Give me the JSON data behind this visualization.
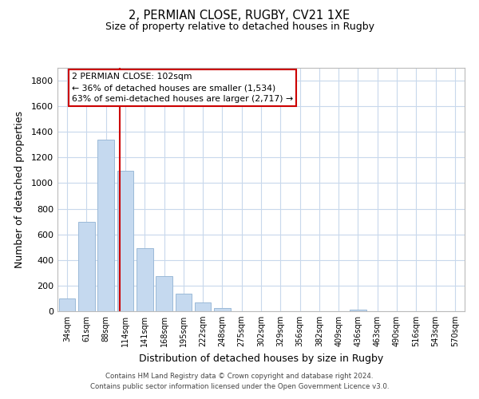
{
  "title": "2, PERMIAN CLOSE, RUGBY, CV21 1XE",
  "subtitle": "Size of property relative to detached houses in Rugby",
  "xlabel": "Distribution of detached houses by size in Rugby",
  "ylabel": "Number of detached properties",
  "bar_color": "#c5d9ef",
  "bar_edge_color": "#9bbad8",
  "vline_color": "#cc0000",
  "categories": [
    "34sqm",
    "61sqm",
    "88sqm",
    "114sqm",
    "141sqm",
    "168sqm",
    "195sqm",
    "222sqm",
    "248sqm",
    "275sqm",
    "302sqm",
    "329sqm",
    "356sqm",
    "382sqm",
    "409sqm",
    "436sqm",
    "463sqm",
    "490sqm",
    "516sqm",
    "543sqm",
    "570sqm"
  ],
  "values": [
    100,
    695,
    1340,
    1095,
    495,
    275,
    140,
    70,
    25,
    0,
    0,
    0,
    0,
    0,
    0,
    15,
    0,
    0,
    0,
    0,
    0
  ],
  "ylim": [
    0,
    1900
  ],
  "yticks": [
    0,
    200,
    400,
    600,
    800,
    1000,
    1200,
    1400,
    1600,
    1800
  ],
  "vline_pos": 2.73,
  "annotation_title": "2 PERMIAN CLOSE: 102sqm",
  "annotation_line1": "← 36% of detached houses are smaller (1,534)",
  "annotation_line2": "63% of semi-detached houses are larger (2,717) →",
  "footer_line1": "Contains HM Land Registry data © Crown copyright and database right 2024.",
  "footer_line2": "Contains public sector information licensed under the Open Government Licence v3.0.",
  "background_color": "#ffffff",
  "grid_color": "#c8d8ec"
}
